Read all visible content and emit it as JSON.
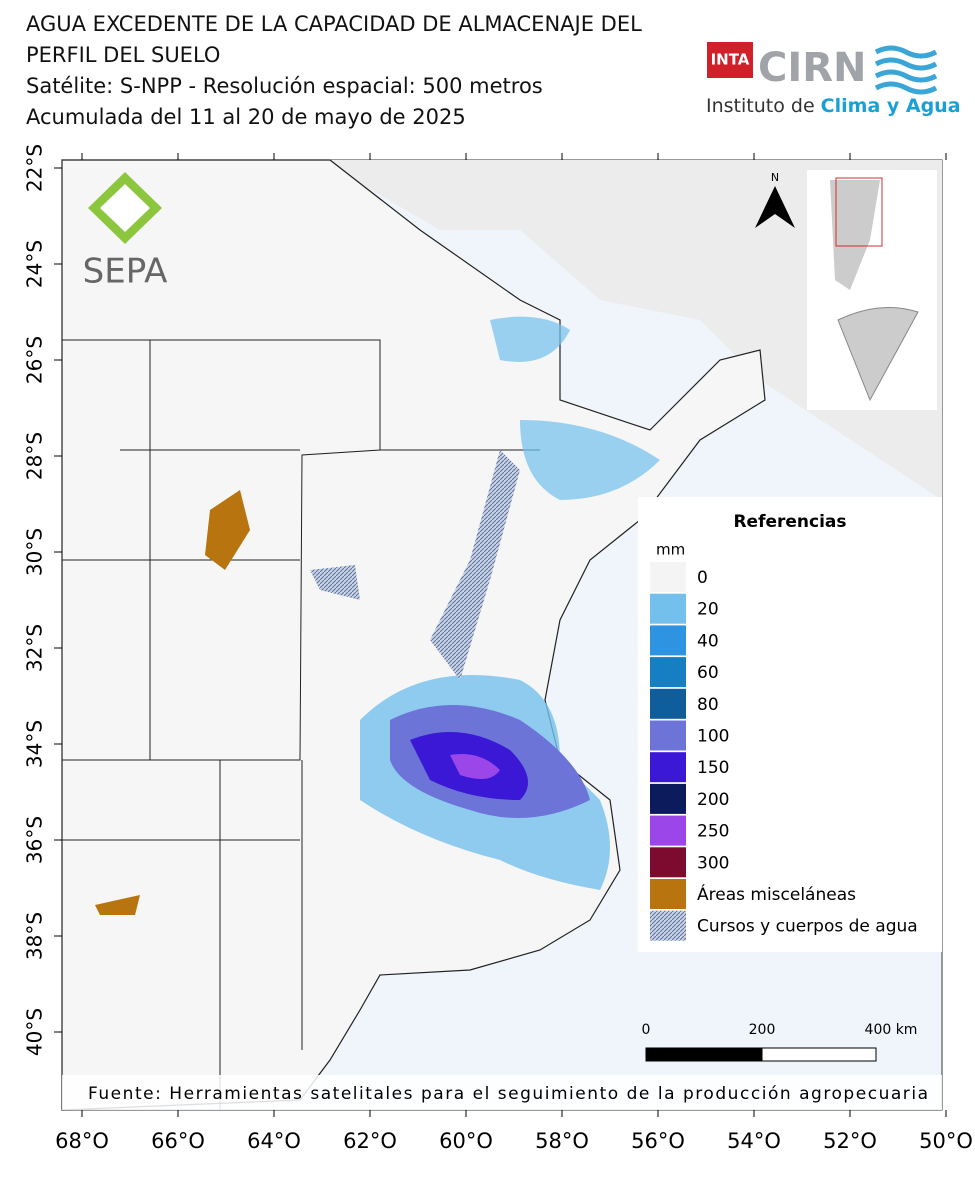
{
  "header": {
    "title_lines": [
      "AGUA EXCEDENTE DE LA CAPACIDAD DE ALMACENAJE DEL",
      "PERFIL DEL SUELO",
      "Satélite: S-NPP - Resolución espacial: 500 metros",
      "Acumulada del 11 al 20 de mayo de 2025"
    ]
  },
  "logos": {
    "inta": "INTA",
    "cirn": "CIRN",
    "institute_prefix": "Instituto de ",
    "institute_highlight": "Clima y Agua",
    "sepa": "SEPA"
  },
  "map": {
    "north": "N",
    "lat_labels": [
      "22°S",
      "24°S",
      "26°S",
      "28°S",
      "30°S",
      "32°S",
      "34°S",
      "36°S",
      "38°S",
      "40°S"
    ],
    "lon_labels": [
      "68°O",
      "66°O",
      "64°O",
      "62°O",
      "60°O",
      "58°O",
      "56°O",
      "54°O",
      "52°O",
      "50°O"
    ]
  },
  "legend": {
    "title": "Referencias",
    "unit": "mm",
    "items": [
      {
        "label": "0",
        "color": "#f4f4f4"
      },
      {
        "label": "20",
        "color": "#74c0ec"
      },
      {
        "label": "40",
        "color": "#2e93e0"
      },
      {
        "label": "60",
        "color": "#167ec2"
      },
      {
        "label": "80",
        "color": "#0f5d9a"
      },
      {
        "label": "100",
        "color": "#6c74d8"
      },
      {
        "label": "150",
        "color": "#3a18d6"
      },
      {
        "label": "200",
        "color": "#0b1b5c"
      },
      {
        "label": "250",
        "color": "#9b46e8"
      },
      {
        "label": "300",
        "color": "#7c0b2f"
      },
      {
        "label": "Áreas misceláneas",
        "color": "#b8740f"
      },
      {
        "label": "Cursos y cuerpos de agua",
        "color": "#8ea3c6"
      }
    ]
  },
  "scale_bar": {
    "labels": [
      "0",
      "200",
      "400 km"
    ]
  },
  "source": "Fuente: Herramientas satelitales para el seguimiento de la producción agropecuaria"
}
